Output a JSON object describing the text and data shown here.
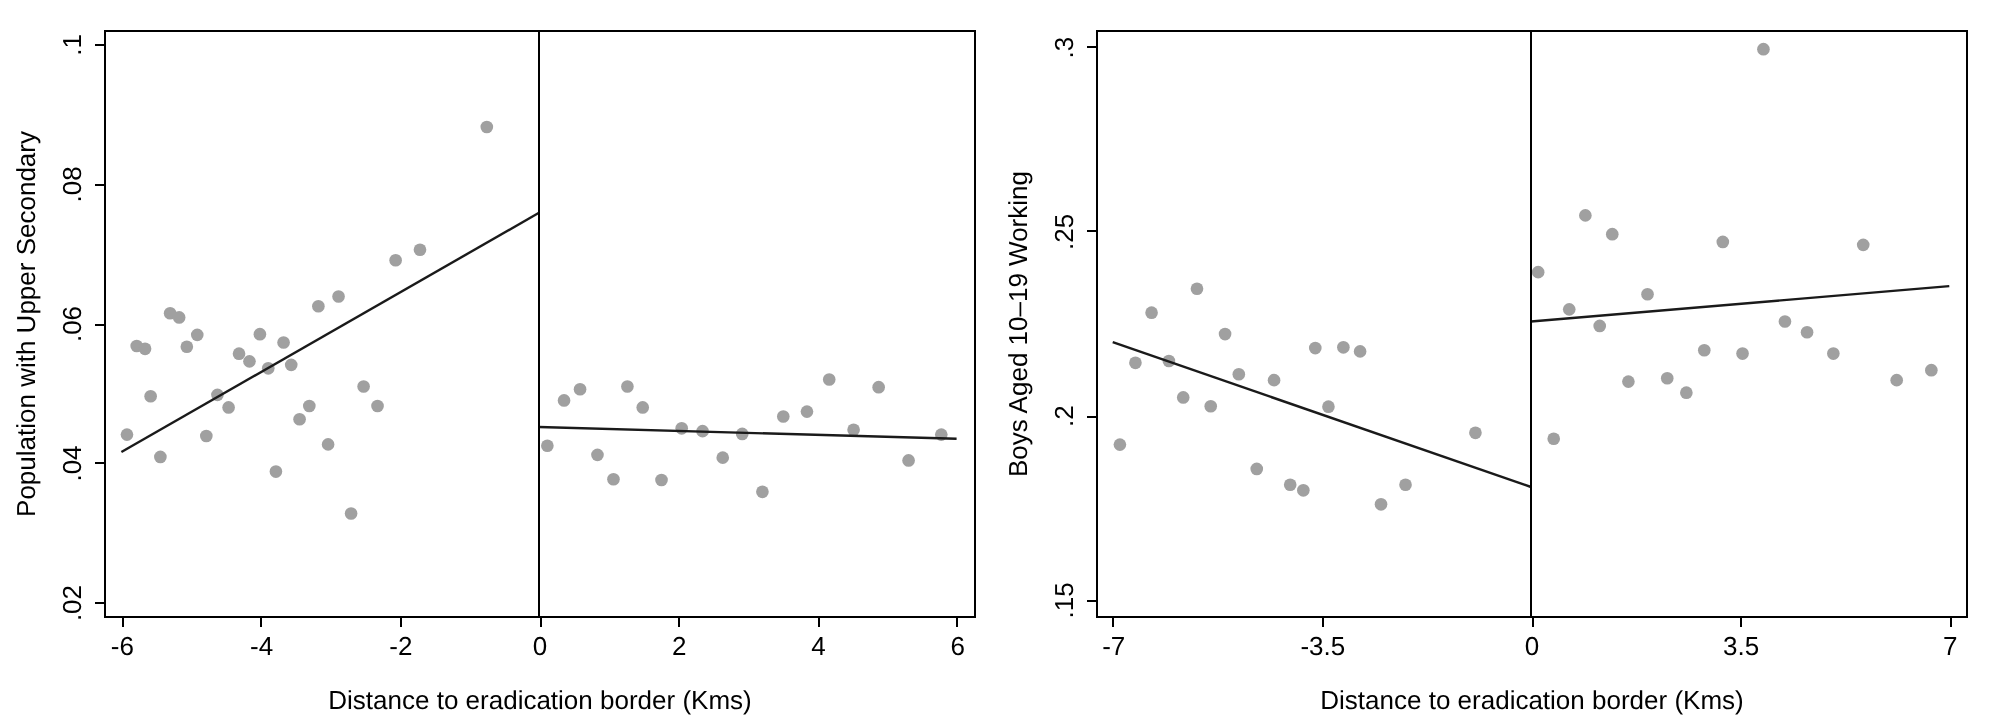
{
  "chart_data": [
    {
      "type": "scatter",
      "xlabel": "Distance to eradication border (Kms)",
      "ylabel": "Population with Upper Secondary",
      "xlim": [
        -6.25,
        6.25
      ],
      "ylim": [
        0.018,
        0.102
      ],
      "xticks": [
        -6,
        -4,
        -2,
        0,
        2,
        4,
        6
      ],
      "yticks": [
        {
          "value": 0.02,
          "label": ".02"
        },
        {
          "value": 0.04,
          "label": ".04"
        },
        {
          "value": 0.06,
          "label": ".06"
        },
        {
          "value": 0.08,
          "label": ".08"
        },
        {
          "value": 0.1,
          "label": ".1"
        }
      ],
      "grid": false,
      "ref_lines": [
        {
          "axis": "x",
          "value": 0,
          "color": "#000000"
        }
      ],
      "series": [
        {
          "type": "scatter",
          "marker": "circle",
          "color": "#a0a0a0",
          "x": [
            -5.92,
            -5.78,
            -5.66,
            -5.58,
            -5.44,
            -5.3,
            -5.17,
            -5.06,
            -4.91,
            -4.78,
            -4.62,
            -4.46,
            -4.31,
            -4.16,
            -4.01,
            -3.89,
            -3.78,
            -3.67,
            -3.56,
            -3.44,
            -3.3,
            -3.17,
            -3.03,
            -2.88,
            -2.7,
            -2.52,
            -2.32,
            -2.06,
            -1.71,
            -0.75,
            0.12,
            0.36,
            0.59,
            0.84,
            1.07,
            1.27,
            1.49,
            1.76,
            2.05,
            2.35,
            2.64,
            2.92,
            3.21,
            3.51,
            3.85,
            4.17,
            4.52,
            4.88,
            5.31,
            5.78
          ],
          "values": [
            0.044,
            0.0567,
            0.0563,
            0.0495,
            0.0408,
            0.0614,
            0.0608,
            0.0566,
            0.0583,
            0.0438,
            0.0497,
            0.0479,
            0.0556,
            0.0545,
            0.0584,
            0.0535,
            0.0387,
            0.0572,
            0.054,
            0.0462,
            0.0481,
            0.0624,
            0.0426,
            0.0638,
            0.0327,
            0.0509,
            0.0481,
            0.069,
            0.0705,
            0.0881,
            0.0424,
            0.0489,
            0.0505,
            0.0411,
            0.0376,
            0.0509,
            0.0479,
            0.0375,
            0.0449,
            0.0445,
            0.0407,
            0.0441,
            0.0358,
            0.0466,
            0.0473,
            0.0519,
            0.0447,
            0.0508,
            0.0403,
            0.044
          ]
        },
        {
          "type": "line",
          "color": "#1a1a1a",
          "x": [
            -6,
            0
          ],
          "values": [
            0.0415,
            0.0758
          ]
        },
        {
          "type": "line",
          "color": "#1a1a1a",
          "x": [
            0,
            6
          ],
          "values": [
            0.0451,
            0.0434
          ]
        }
      ]
    },
    {
      "type": "scatter",
      "xlabel": "Distance to eradication border (Kms)",
      "ylabel": "Boys Aged 10–19 Working",
      "xlim": [
        -7.28,
        7.28
      ],
      "ylim": [
        0.1455,
        0.3045
      ],
      "xticks": [
        -7,
        -3.5,
        0,
        3.5,
        7
      ],
      "yticks": [
        {
          "value": 0.15,
          "label": ".15"
        },
        {
          "value": 0.2,
          "label": ".2"
        },
        {
          "value": 0.25,
          "label": ".25"
        },
        {
          "value": 0.3,
          "label": ".3"
        }
      ],
      "grid": false,
      "ref_lines": [
        {
          "axis": "x",
          "value": 0,
          "color": "#000000"
        }
      ],
      "series": [
        {
          "type": "scatter",
          "marker": "circle",
          "color": "#a0a0a0",
          "x": [
            -6.88,
            -6.62,
            -6.35,
            -6.06,
            -5.82,
            -5.59,
            -5.36,
            -5.12,
            -4.89,
            -4.59,
            -4.3,
            -4.03,
            -3.81,
            -3.61,
            -3.39,
            -3.14,
            -2.86,
            -2.51,
            -2.1,
            -0.93,
            0.12,
            0.38,
            0.64,
            0.91,
            1.15,
            1.36,
            1.63,
            1.95,
            2.28,
            2.6,
            2.9,
            3.21,
            3.54,
            3.89,
            4.25,
            4.62,
            5.06,
            5.56,
            6.12,
            6.7
          ],
          "values": [
            0.192,
            0.2142,
            0.2278,
            0.2147,
            0.2048,
            0.2343,
            0.2024,
            0.222,
            0.2111,
            0.1854,
            0.2095,
            0.1811,
            0.1796,
            0.2182,
            0.2023,
            0.2184,
            0.2173,
            0.1758,
            0.1811,
            0.1952,
            0.2388,
            0.1936,
            0.2287,
            0.2542,
            0.2242,
            0.2491,
            0.2091,
            0.2328,
            0.21,
            0.2061,
            0.2176,
            0.247,
            0.2167,
            0.2993,
            0.2254,
            0.2225,
            0.2167,
            0.2462,
            0.2095,
            0.2122
          ]
        },
        {
          "type": "line",
          "color": "#1a1a1a",
          "x": [
            -7,
            0
          ],
          "values": [
            0.2198,
            0.1805
          ]
        },
        {
          "type": "line",
          "color": "#1a1a1a",
          "x": [
            0,
            7
          ],
          "values": [
            0.2254,
            0.235
          ]
        }
      ]
    }
  ]
}
